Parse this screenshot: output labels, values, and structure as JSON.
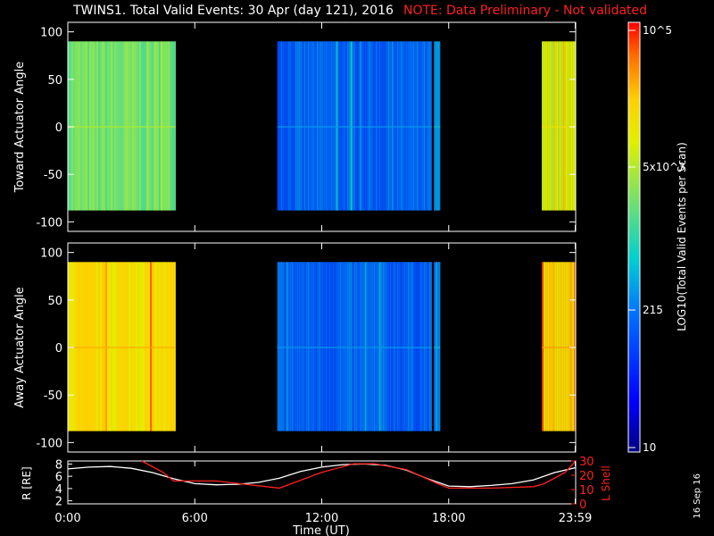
{
  "header": {
    "title": "TWINS1. Total Valid Events: 30 Apr (day 121), 2016",
    "note": "NOTE: Data Preliminary - Not validated"
  },
  "footer": {
    "date_stamp": "16 Sep 16"
  },
  "colors": {
    "note": "#ff2020",
    "background": "#000000",
    "foreground": "#ffffff",
    "r_line": "#ffffff",
    "lshell_line": "#ff2020"
  },
  "chart_data": [
    {
      "type": "heatmap",
      "id": "toward",
      "ylabel": "Toward Actuator Angle",
      "ylim": [
        -110,
        110
      ],
      "yticks": [
        100,
        50,
        0,
        -50,
        -100
      ],
      "xlim": [
        0,
        24
      ],
      "data_extent_angle": [
        -88,
        90
      ],
      "segments": [
        {
          "start_h": 0.0,
          "end_h": 5.1,
          "level": 0.58
        },
        {
          "start_h": 9.9,
          "end_h": 17.2,
          "level": 0.3
        },
        {
          "start_h": 17.3,
          "end_h": 17.6,
          "level": 0.35
        },
        {
          "start_h": 22.4,
          "end_h": 24.0,
          "level": 0.7
        }
      ]
    },
    {
      "type": "heatmap",
      "id": "away",
      "ylabel": "Away Actuator Angle",
      "ylim": [
        -110,
        110
      ],
      "yticks": [
        100,
        50,
        0,
        -50,
        -100
      ],
      "xlim": [
        0,
        24
      ],
      "data_extent_angle": [
        -88,
        90
      ],
      "segments": [
        {
          "start_h": 0.0,
          "end_h": 5.1,
          "level": 0.78
        },
        {
          "start_h": 9.9,
          "end_h": 17.2,
          "level": 0.3
        },
        {
          "start_h": 17.3,
          "end_h": 17.6,
          "level": 0.35
        },
        {
          "start_h": 22.4,
          "end_h": 24.0,
          "level": 0.8
        }
      ]
    },
    {
      "type": "line",
      "id": "orbit",
      "ylabel_left": "R [RE]",
      "ylabel_right": "L Shell",
      "xlabel": "Time (UT)",
      "xlim": [
        0,
        24
      ],
      "xticks": [
        0,
        6,
        12,
        18,
        23.98
      ],
      "xtick_labels": [
        "0:00",
        "6:00",
        "12:00",
        "18:00",
        "23:59"
      ],
      "ylim_left": [
        1.5,
        8.5
      ],
      "yticks_left": [
        2,
        4,
        6,
        8
      ],
      "ylim_right": [
        0,
        30
      ],
      "yticks_right": [
        0,
        10,
        20,
        30
      ],
      "series": [
        {
          "name": "R",
          "axis": "left",
          "x": [
            0,
            1,
            2,
            3,
            4,
            5,
            6,
            7,
            8,
            9,
            10,
            11,
            12,
            13,
            14,
            15,
            16,
            17,
            18,
            19,
            20,
            21,
            22,
            23,
            24
          ],
          "y": [
            7.2,
            7.5,
            7.6,
            7.3,
            6.6,
            5.6,
            4.8,
            4.6,
            4.7,
            5.0,
            5.7,
            6.8,
            7.5,
            7.9,
            8.0,
            7.8,
            7.0,
            5.6,
            4.4,
            4.3,
            4.5,
            4.8,
            5.4,
            6.6,
            7.4
          ]
        },
        {
          "name": "L Shell",
          "axis": "right",
          "x": [
            3.5,
            4.5,
            5.0,
            7.0,
            10.0,
            12.0,
            13.5,
            14.5,
            16.0,
            17.5,
            18.0,
            20.0,
            22.0,
            22.5,
            23.5,
            24.0
          ],
          "y": [
            30,
            22,
            16,
            16,
            11,
            22,
            28,
            28,
            24,
            14,
            11,
            11,
            12,
            14,
            22,
            30
          ]
        }
      ]
    }
  ],
  "colorbar": {
    "label": "LOG10(Total Valid Events per Scan)",
    "tick_labels": [
      "10^5",
      "5x10^3",
      "215",
      "10"
    ]
  }
}
